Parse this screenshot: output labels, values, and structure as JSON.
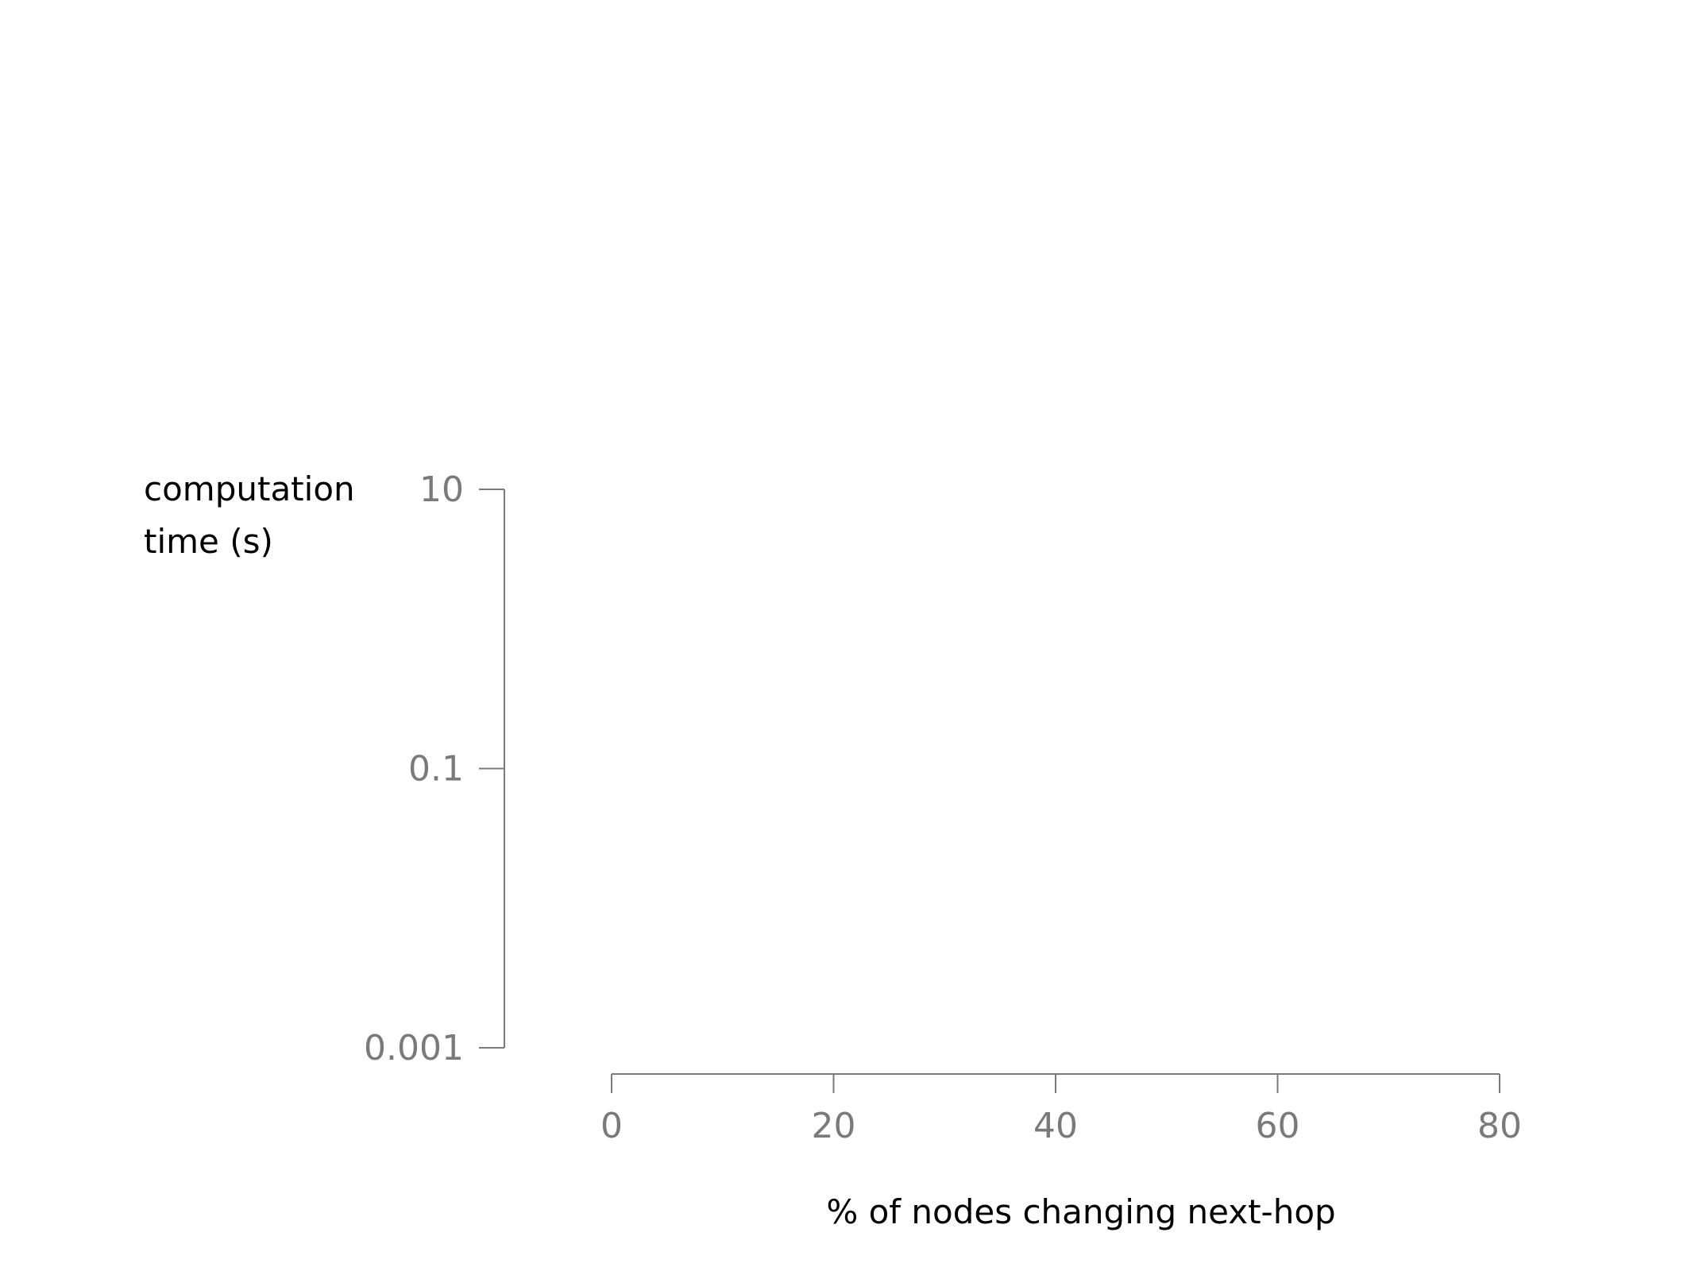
{
  "chart_data": {
    "type": "scatter",
    "title": "",
    "xlabel": "% of nodes changing next-hop",
    "ylabel_lines": [
      "computation",
      "time (s)"
    ],
    "xlim": [
      0,
      80
    ],
    "ylim": [
      0.001,
      10
    ],
    "yscale": "log",
    "xticks": [
      "0",
      "20",
      "40",
      "60",
      "80"
    ],
    "yticks": [
      "10",
      "0.1",
      "0.001"
    ],
    "grid": false,
    "axis_color": "#7a7a7a",
    "series": []
  }
}
